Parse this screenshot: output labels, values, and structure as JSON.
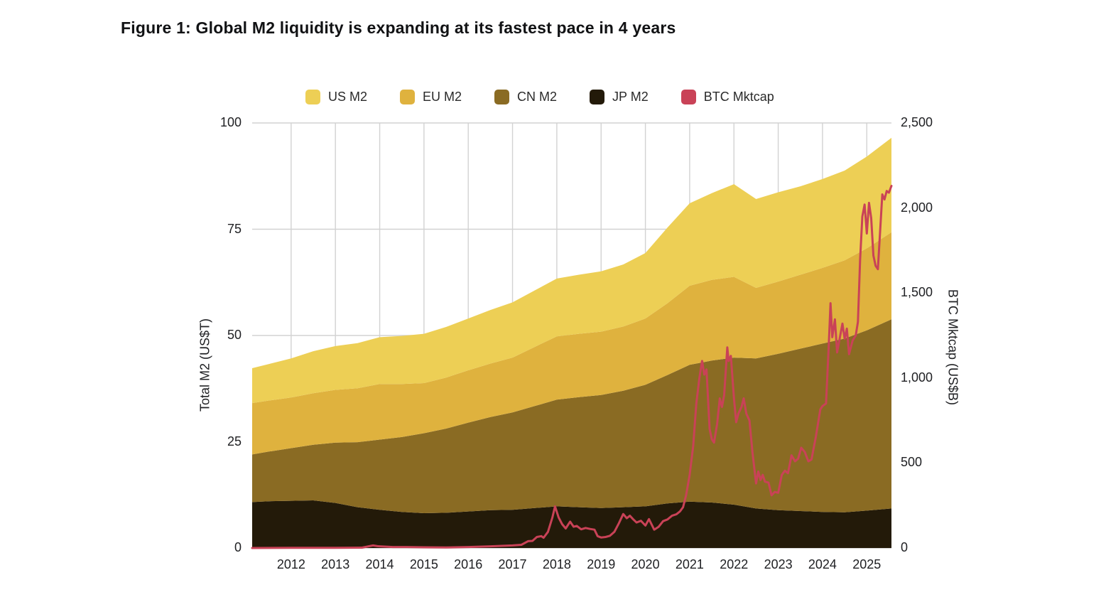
{
  "title": "Figure 1: Global M2 liquidity is expanding at its fastest pace in 4 years",
  "colors": {
    "us_m2": "#EDCF55",
    "eu_m2": "#DFB23E",
    "cn_m2": "#8A6B23",
    "jp_m2": "#231A09",
    "btc": "#C94257",
    "gridline": "#d2d2d2",
    "text": "#202124"
  },
  "legend": [
    {
      "label": "US M2",
      "color": "#EDCF55"
    },
    {
      "label": "EU M2",
      "color": "#DFB23E"
    },
    {
      "label": "CN M2",
      "color": "#8A6B23"
    },
    {
      "label": "JP M2",
      "color": "#231A09"
    },
    {
      "label": "BTC Mktcap",
      "color": "#C94257"
    }
  ],
  "left_axis": {
    "title": "Total M2 (US$T)",
    "tick_labels": [
      "100",
      "75",
      "50",
      "25",
      "0"
    ],
    "tick_values": [
      100,
      75,
      50,
      25,
      0
    ],
    "range": [
      0,
      100
    ]
  },
  "right_axis": {
    "title": "BTC Mktcap (US$B)",
    "tick_labels": [
      "2,500",
      "2,000",
      "1,500",
      "1,000",
      "500",
      "0"
    ],
    "tick_values": [
      2500,
      2000,
      1500,
      1000,
      500,
      0
    ],
    "range": [
      0,
      2500
    ]
  },
  "x_axis": {
    "tick_labels": [
      "2012",
      "2013",
      "2014",
      "2015",
      "2016",
      "2017",
      "2018",
      "2019",
      "2020",
      "2021",
      "2022",
      "2023",
      "2024",
      "2025"
    ],
    "tick_values": [
      2012,
      2013,
      2014,
      2015,
      2016,
      2017,
      2018,
      2019,
      2020,
      2021,
      2022,
      2023,
      2024,
      2025
    ],
    "range": [
      2011.12,
      2025.557
    ]
  },
  "chart_data": {
    "type": "area",
    "subtype": "stacked-area with overlaid line",
    "title": "Figure 1: Global M2 liquidity is expanding at its fastest pace in 4 years",
    "xlabel": "",
    "ylabel_left": "Total M2 (US$T)",
    "ylabel_right": "BTC Mktcap (US$B)",
    "ylim_left": [
      0,
      100
    ],
    "ylim_right": [
      0,
      2500
    ],
    "xlim": [
      2011.12,
      2025.557
    ],
    "grid": true,
    "legend_position": "top",
    "x": [
      2011.12,
      2011.5,
      2012.0,
      2012.5,
      2013.0,
      2013.5,
      2014.0,
      2014.5,
      2015.0,
      2015.5,
      2016.0,
      2016.5,
      2017.0,
      2017.5,
      2018.0,
      2018.5,
      2019.0,
      2019.5,
      2020.0,
      2020.5,
      2021.0,
      2021.5,
      2022.0,
      2022.5,
      2023.0,
      2023.5,
      2024.0,
      2024.5,
      2025.0,
      2025.557
    ],
    "series": [
      {
        "name": "JP M2",
        "color": "#231A09",
        "units": "US$T",
        "values": [
          10.8,
          11.0,
          11.1,
          11.2,
          10.6,
          9.6,
          9.0,
          8.5,
          8.2,
          8.3,
          8.6,
          8.9,
          9.0,
          9.4,
          9.8,
          9.6,
          9.4,
          9.6,
          9.8,
          10.5,
          10.9,
          10.7,
          10.2,
          9.3,
          8.9,
          8.7,
          8.5,
          8.4,
          8.8,
          9.3
        ]
      },
      {
        "name": "CN M2",
        "color": "#8A6B23",
        "units": "US$T",
        "values": [
          11.2,
          11.7,
          12.4,
          13.1,
          14.2,
          15.3,
          16.5,
          17.6,
          18.8,
          19.8,
          20.9,
          21.9,
          22.9,
          24.0,
          25.1,
          25.9,
          26.6,
          27.4,
          28.6,
          30.2,
          32.2,
          33.4,
          34.6,
          35.3,
          36.8,
          38.2,
          39.6,
          40.9,
          42.4,
          44.5
        ]
      },
      {
        "name": "EU M2",
        "color": "#DFB23E",
        "units": "US$T",
        "values": [
          12.1,
          12.0,
          11.9,
          12.1,
          12.4,
          12.7,
          13.1,
          12.5,
          11.8,
          12.0,
          12.3,
          12.6,
          12.9,
          13.9,
          14.9,
          14.9,
          14.9,
          15.1,
          15.6,
          16.9,
          18.6,
          19.0,
          19.0,
          16.6,
          17.0,
          17.4,
          17.8,
          18.4,
          19.3,
          20.5
        ]
      },
      {
        "name": "US M2",
        "color": "#EDCF55",
        "units": "US$T",
        "values": [
          8.2,
          8.6,
          9.2,
          9.9,
          10.3,
          10.6,
          11.0,
          11.3,
          11.6,
          11.9,
          12.2,
          12.6,
          13.0,
          13.3,
          13.6,
          13.9,
          14.2,
          14.6,
          15.4,
          17.8,
          19.4,
          20.4,
          21.8,
          20.9,
          21.0,
          20.8,
          20.9,
          21.1,
          21.6,
          22.2
        ]
      }
    ],
    "btc_line": {
      "name": "BTC Mktcap",
      "color": "#C94257",
      "units": "US$B",
      "axis": "right",
      "points": [
        [
          2011.12,
          0
        ],
        [
          2012.0,
          1
        ],
        [
          2013.0,
          1
        ],
        [
          2013.6,
          2
        ],
        [
          2013.85,
          15
        ],
        [
          2013.95,
          11
        ],
        [
          2014.0,
          10
        ],
        [
          2014.3,
          6
        ],
        [
          2014.6,
          6
        ],
        [
          2015.0,
          4
        ],
        [
          2015.5,
          3
        ],
        [
          2016.0,
          6
        ],
        [
          2016.5,
          10
        ],
        [
          2017.0,
          15
        ],
        [
          2017.2,
          19
        ],
        [
          2017.35,
          40
        ],
        [
          2017.45,
          42
        ],
        [
          2017.55,
          65
        ],
        [
          2017.65,
          70
        ],
        [
          2017.7,
          60
        ],
        [
          2017.8,
          95
        ],
        [
          2017.9,
          180
        ],
        [
          2017.96,
          245
        ],
        [
          2018.04,
          180
        ],
        [
          2018.12,
          140
        ],
        [
          2018.2,
          115
        ],
        [
          2018.3,
          155
        ],
        [
          2018.38,
          125
        ],
        [
          2018.45,
          130
        ],
        [
          2018.55,
          110
        ],
        [
          2018.65,
          118
        ],
        [
          2018.75,
          112
        ],
        [
          2018.85,
          108
        ],
        [
          2018.92,
          70
        ],
        [
          2019.0,
          62
        ],
        [
          2019.1,
          65
        ],
        [
          2019.2,
          72
        ],
        [
          2019.3,
          95
        ],
        [
          2019.4,
          145
        ],
        [
          2019.5,
          200
        ],
        [
          2019.58,
          175
        ],
        [
          2019.65,
          190
        ],
        [
          2019.72,
          170
        ],
        [
          2019.8,
          150
        ],
        [
          2019.9,
          160
        ],
        [
          2020.0,
          132
        ],
        [
          2020.08,
          170
        ],
        [
          2020.2,
          108
        ],
        [
          2020.3,
          125
        ],
        [
          2020.4,
          158
        ],
        [
          2020.5,
          168
        ],
        [
          2020.6,
          190
        ],
        [
          2020.7,
          198
        ],
        [
          2020.78,
          215
        ],
        [
          2020.85,
          240
        ],
        [
          2020.92,
          310
        ],
        [
          2021.0,
          430
        ],
        [
          2021.08,
          600
        ],
        [
          2021.15,
          850
        ],
        [
          2021.22,
          1000
        ],
        [
          2021.28,
          1100
        ],
        [
          2021.33,
          1020
        ],
        [
          2021.38,
          1050
        ],
        [
          2021.45,
          700
        ],
        [
          2021.5,
          640
        ],
        [
          2021.55,
          620
        ],
        [
          2021.62,
          730
        ],
        [
          2021.68,
          880
        ],
        [
          2021.73,
          830
        ],
        [
          2021.78,
          900
        ],
        [
          2021.85,
          1180
        ],
        [
          2021.88,
          1100
        ],
        [
          2021.93,
          1130
        ],
        [
          2022.0,
          880
        ],
        [
          2022.05,
          740
        ],
        [
          2022.1,
          790
        ],
        [
          2022.17,
          830
        ],
        [
          2022.22,
          880
        ],
        [
          2022.28,
          790
        ],
        [
          2022.35,
          750
        ],
        [
          2022.42,
          560
        ],
        [
          2022.5,
          380
        ],
        [
          2022.55,
          450
        ],
        [
          2022.6,
          400
        ],
        [
          2022.65,
          430
        ],
        [
          2022.7,
          390
        ],
        [
          2022.78,
          385
        ],
        [
          2022.85,
          310
        ],
        [
          2022.92,
          330
        ],
        [
          2023.0,
          325
        ],
        [
          2023.08,
          430
        ],
        [
          2023.15,
          455
        ],
        [
          2023.22,
          440
        ],
        [
          2023.3,
          545
        ],
        [
          2023.38,
          510
        ],
        [
          2023.45,
          525
        ],
        [
          2023.52,
          590
        ],
        [
          2023.6,
          565
        ],
        [
          2023.68,
          510
        ],
        [
          2023.75,
          520
        ],
        [
          2023.85,
          655
        ],
        [
          2023.95,
          815
        ],
        [
          2024.0,
          835
        ],
        [
          2024.08,
          850
        ],
        [
          2024.14,
          1190
        ],
        [
          2024.18,
          1440
        ],
        [
          2024.22,
          1240
        ],
        [
          2024.28,
          1345
        ],
        [
          2024.33,
          1150
        ],
        [
          2024.4,
          1250
        ],
        [
          2024.45,
          1320
        ],
        [
          2024.5,
          1230
        ],
        [
          2024.55,
          1290
        ],
        [
          2024.6,
          1140
        ],
        [
          2024.68,
          1220
        ],
        [
          2024.75,
          1250
        ],
        [
          2024.8,
          1330
        ],
        [
          2024.85,
          1700
        ],
        [
          2024.9,
          1950
        ],
        [
          2024.95,
          2020
        ],
        [
          2025.0,
          1850
        ],
        [
          2025.05,
          2030
        ],
        [
          2025.1,
          1940
        ],
        [
          2025.15,
          1720
        ],
        [
          2025.2,
          1660
        ],
        [
          2025.25,
          1640
        ],
        [
          2025.3,
          1860
        ],
        [
          2025.35,
          2080
        ],
        [
          2025.4,
          2050
        ],
        [
          2025.45,
          2100
        ],
        [
          2025.5,
          2090
        ],
        [
          2025.557,
          2130
        ]
      ]
    }
  }
}
